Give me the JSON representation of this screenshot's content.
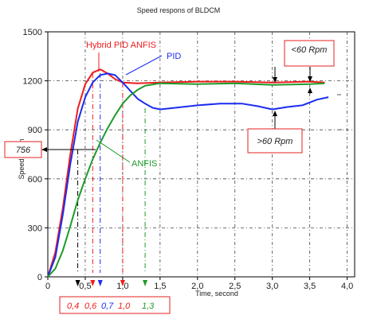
{
  "chart_data": {
    "type": "line",
    "title": "Speed respons of BLDCM",
    "xlabel": "Time, second",
    "ylabel": "Speed, r/min",
    "xlim": [
      0,
      4.1
    ],
    "ylim": [
      0,
      1500
    ],
    "x_ticks": [
      "0",
      "0,5",
      "1,0",
      "1,5",
      "2,0",
      "2,5",
      "3,0",
      "3,5",
      "4,0"
    ],
    "y_ticks": [
      "0",
      "300",
      "600",
      "900",
      "1200",
      "1500"
    ],
    "grid": true,
    "series": [
      {
        "name": "Hybrid PID ANFIS",
        "color": "#ee1c1c",
        "x": [
          0,
          0.1,
          0.2,
          0.3,
          0.4,
          0.5,
          0.6,
          0.7,
          0.8,
          0.9,
          1.0,
          1.2,
          1.5,
          2.0,
          2.5,
          3.0,
          3.5,
          3.7
        ],
        "y": [
          0,
          150,
          420,
          750,
          1030,
          1180,
          1250,
          1270,
          1245,
          1210,
          1190,
          1185,
          1190,
          1195,
          1195,
          1190,
          1195,
          1190
        ]
      },
      {
        "name": "PID",
        "color": "#1c2cf0",
        "x": [
          0,
          0.1,
          0.2,
          0.3,
          0.4,
          0.5,
          0.6,
          0.7,
          0.8,
          0.9,
          1.0,
          1.1,
          1.2,
          1.3,
          1.4,
          1.5,
          1.7,
          2.0,
          2.3,
          2.6,
          2.8,
          3.0,
          3.2,
          3.4,
          3.6,
          3.75
        ],
        "y": [
          0,
          120,
          380,
          690,
          950,
          1100,
          1190,
          1235,
          1245,
          1235,
          1190,
          1140,
          1090,
          1060,
          1035,
          1025,
          1035,
          1050,
          1060,
          1060,
          1045,
          1025,
          1040,
          1050,
          1085,
          1100
        ]
      },
      {
        "name": "ANFIS",
        "color": "#1e9a2a",
        "x": [
          0,
          0.1,
          0.2,
          0.3,
          0.4,
          0.5,
          0.6,
          0.7,
          0.8,
          0.9,
          1.0,
          1.1,
          1.2,
          1.3,
          1.5,
          2.0,
          2.5,
          3.0,
          3.5,
          3.7
        ],
        "y": [
          0,
          50,
          160,
          310,
          470,
          600,
          720,
          820,
          910,
          990,
          1060,
          1110,
          1145,
          1170,
          1185,
          1180,
          1185,
          1175,
          1180,
          1185
        ]
      }
    ],
    "annotations": [
      {
        "text": "Hybrid PID ANFIS",
        "color": "#ee1c1c"
      },
      {
        "text": "PID",
        "color": "#1c2cf0"
      },
      {
        "text": "ANFIS",
        "color": "#1e9a2a"
      },
      {
        "text": "<60 Rpm",
        "color": "#222222"
      },
      {
        "text": ">60 Rpm",
        "color": "#222222"
      },
      {
        "text": "756",
        "color": "#222222"
      }
    ],
    "time_markers": [
      {
        "text": "0,4",
        "x": 0.4,
        "color": "#ee1c1c"
      },
      {
        "text": "0,6",
        "x": 0.6,
        "color": "#ee1c1c"
      },
      {
        "text": "0,7",
        "x": 0.7,
        "color": "#1c2cf0"
      },
      {
        "text": "1,0",
        "x": 1.0,
        "color": "#ee1c1c"
      },
      {
        "text": "1,3",
        "x": 1.3,
        "color": "#1e9a2a"
      }
    ]
  }
}
